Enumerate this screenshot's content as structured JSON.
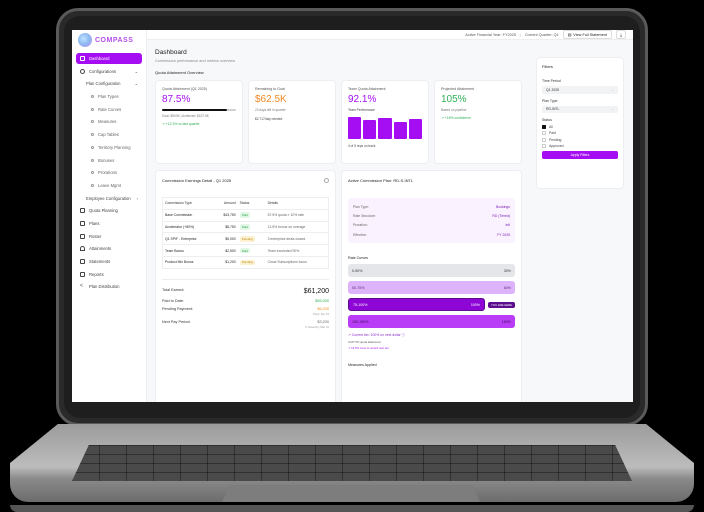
{
  "brand": {
    "name": "COMPASS"
  },
  "sidebar": {
    "items": [
      {
        "label": "Dashboard",
        "active": true
      },
      {
        "label": "Configurations"
      },
      {
        "label": "Plan Configuration"
      },
      {
        "label": "Plan Types"
      },
      {
        "label": "Rate Curves"
      },
      {
        "label": "Measures"
      },
      {
        "label": "Cap Tables"
      },
      {
        "label": "Territory Planning"
      },
      {
        "label": "Bonuses"
      },
      {
        "label": "Prorations"
      },
      {
        "label": "Leave Mgmt"
      },
      {
        "label": "Employee Configuration"
      },
      {
        "label": "Quota Planning"
      },
      {
        "label": "Plans"
      },
      {
        "label": "Roster"
      },
      {
        "label": "Attainments"
      },
      {
        "label": "Statements"
      },
      {
        "label": "Reports"
      },
      {
        "label": "Plan Distribution"
      }
    ]
  },
  "topbar": {
    "financial_year": "Active Financial Year: FY2025",
    "separator": "|",
    "current_quarter": "Current Quarter: Q1",
    "view_statement": "View Full Statement",
    "download_icon": "⤓",
    "doc_icon": "▤"
  },
  "page": {
    "title": "Dashboard",
    "subtitle": "Commission performance and metrics overview",
    "section": "Quota Attainment Overview"
  },
  "kpis": {
    "quota": {
      "label": "Quota Attainment (Q1 2025)",
      "value": "87.5%",
      "detail": "Goal: $500K | Achieved: $437.5K",
      "trend": "↗ +12.3% vs last quarter",
      "color": "#a50ef2"
    },
    "remaining": {
      "label": "Remaining to Goal",
      "value": "$62.5K",
      "detail": "23 days left in quarter",
      "detail2": "$2,717/day needed",
      "color": "#f08a24"
    },
    "team": {
      "label": "Team Quota Attainment",
      "value": "92.1%",
      "sub": "Team Performance",
      "bars": [
        100,
        88,
        94,
        76,
        90
      ],
      "footer": "4 of 5 reps on track",
      "color": "#a50ef2"
    },
    "projected": {
      "label": "Projected Attainment",
      "value": "105%",
      "detail": "Based on pipeline",
      "trend": "↗ +18% confidence",
      "color": "#2fae56"
    }
  },
  "earnings": {
    "title": "Commission Earnings Detail - Q1 2025",
    "columns": [
      "Commission Type",
      "Amount",
      "Status",
      "Details"
    ],
    "rows": [
      {
        "type": "Base Commission",
        "amount": "$43,750",
        "status": "Paid",
        "details": "87.5% quota × 10% rate"
      },
      {
        "type": "Accelerator (+80%)",
        "amount": "$8,750",
        "status": "Paid",
        "details": "12.5% bonus on overage"
      },
      {
        "type": "Q1 SPIF - Enterprise",
        "amount": "$5,000",
        "status": "Pending",
        "details": "3 enterprise deals closed"
      },
      {
        "type": "Team Bonus",
        "amount": "$2,500",
        "status": "Paid",
        "details": "Team exceeded 90%"
      },
      {
        "type": "Product Mix Bonus",
        "amount": "$1,200",
        "status": "Pending",
        "details": "Cloud Subscriptions focus"
      }
    ],
    "totals": {
      "total_label": "Total Earned:",
      "total_value": "$61,200",
      "paid_label": "Paid to Date:",
      "paid_value": "$55,000",
      "pending_label": "Pending Payment:",
      "pending_value": "$6,200",
      "pending_note": "Pays: Apr 15",
      "next_label": "Next Pay Period:",
      "next_value": "$3,200",
      "next_note": "If closed by Mar 31"
    }
  },
  "plan": {
    "title": "Active Commission Plan: RD-S-INTL",
    "details": [
      {
        "k": "Plan Type:",
        "v": "Bookings"
      },
      {
        "k": "Rate Structure:",
        "v": "RD (Tiered)"
      },
      {
        "k": "Proration:",
        "v": "Intl"
      },
      {
        "k": "Effective:",
        "v": "FY 2025"
      }
    ],
    "rate_title": "Rate Curves",
    "tiers": [
      {
        "range": "0-50%",
        "rate": "30%"
      },
      {
        "range": "50-75%",
        "rate": "60%"
      },
      {
        "range": "75-100%",
        "rate": "100%",
        "marker": "YOU ARE HERE"
      },
      {
        "range": "100-150%",
        "rate": "150%"
      }
    ],
    "current": "↗ Current tier: 100% on next dollar ⓘ",
    "at": "At 87.5% quota attainment",
    "unlock": "↗ 12.5% more to unlock next tier",
    "measures": "Measures Applied"
  },
  "filters": {
    "title": "Filters",
    "time_label": "Time Period",
    "time_value": "Q1 2025",
    "plan_label": "Plan Type",
    "plan_value": "RD-INTL",
    "status_label": "Status",
    "statuses": [
      {
        "label": "All",
        "checked": true
      },
      {
        "label": "Paid"
      },
      {
        "label": "Pending"
      },
      {
        "label": "Approved"
      }
    ],
    "apply": "Apply Filters"
  },
  "colors": {
    "accent": "#a50ef2",
    "orange": "#f08a24",
    "green": "#2fae56"
  }
}
